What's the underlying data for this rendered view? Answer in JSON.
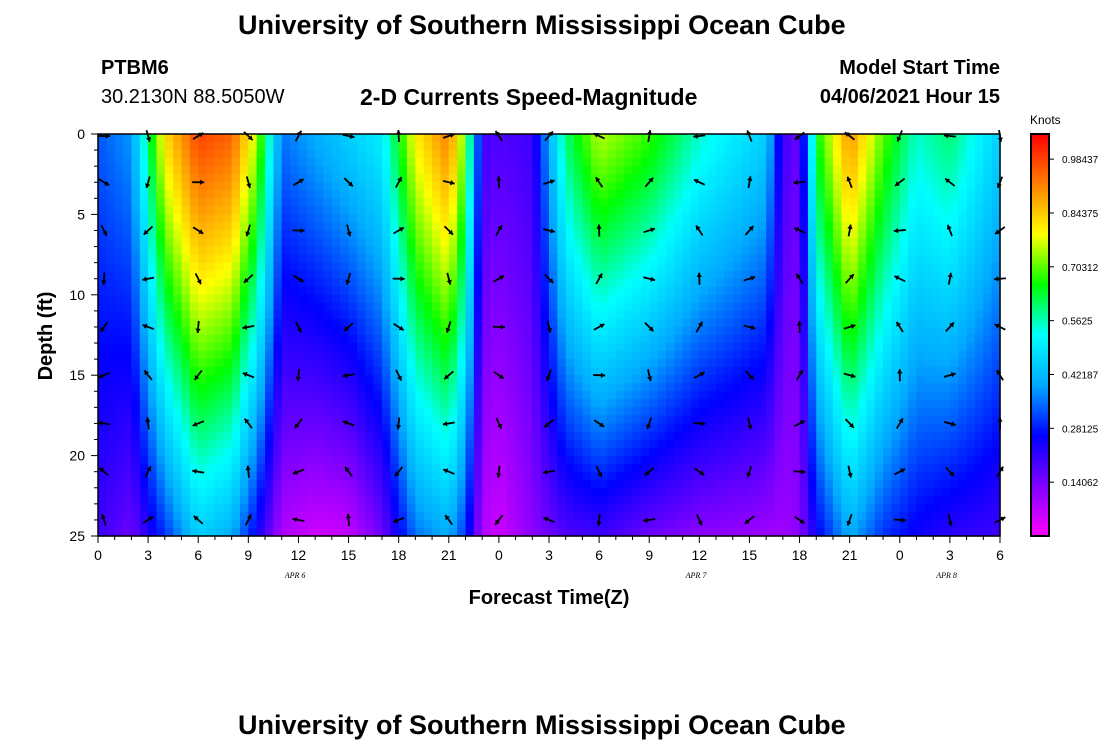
{
  "page": {
    "title": "University of Southern Mississippi Ocean Cube",
    "footer_title": "University of Southern Mississippi Ocean Cube",
    "station_id": "PTBM6",
    "station_coords": "30.2130N  88.5050W",
    "model_start_label": "Model Start Time",
    "model_start_value": "04/06/2021 Hour 15"
  },
  "chart_data": {
    "type": "heatmap",
    "title": "2-D Currents Speed-Magnitude",
    "xlabel": "Forecast Time(Z)",
    "ylabel": "Depth (ft)",
    "x_hours_range": [
      0,
      54
    ],
    "x_tick_labels": [
      "0",
      "3",
      "6",
      "9",
      "12",
      "15",
      "18",
      "21",
      "0",
      "3",
      "6",
      "9",
      "12",
      "15",
      "18",
      "21",
      "0",
      "3",
      "6"
    ],
    "date_labels": [
      {
        "text": "APR 6",
        "hour": 11.8
      },
      {
        "text": "APR 7",
        "hour": 35.8
      },
      {
        "text": "APR 8",
        "hour": 50.8
      }
    ],
    "y_range_ft": [
      0,
      25
    ],
    "y_tick_labels": [
      "0",
      "5",
      "10",
      "15",
      "20",
      "25"
    ],
    "colorbar": {
      "title": "Knots",
      "range": [
        0,
        1.05
      ],
      "tick_labels": [
        "0.98437",
        "0.84375",
        "0.70312",
        "0.5625",
        "0.42187",
        "0.28125",
        "0.14062"
      ],
      "tick_values": [
        0.98437,
        0.84375,
        0.70312,
        0.5625,
        0.42187,
        0.28125,
        0.14062
      ],
      "colors": [
        "#ff00ff",
        "#8000ff",
        "#0000ff",
        "#00aaff",
        "#00ffff",
        "#00ff00",
        "#ffff00",
        "#ff8000",
        "#ff0000"
      ]
    },
    "speed_profiles": [
      {
        "hour": 0,
        "surface": 0.33,
        "deep": 0.2
      },
      {
        "hour": 2,
        "surface": 0.38,
        "deep": 0.15
      },
      {
        "hour": 4,
        "surface": 0.82,
        "deep": 0.3
      },
      {
        "hour": 6,
        "surface": 0.98,
        "deep": 0.45
      },
      {
        "hour": 8,
        "surface": 0.95,
        "deep": 0.4
      },
      {
        "hour": 9.5,
        "surface": 0.75,
        "deep": 0.25
      },
      {
        "hour": 11,
        "surface": 0.35,
        "deep": 0.08
      },
      {
        "hour": 13,
        "surface": 0.4,
        "deep": 0.05
      },
      {
        "hour": 15,
        "surface": 0.45,
        "deep": 0.06
      },
      {
        "hour": 17,
        "surface": 0.5,
        "deep": 0.15
      },
      {
        "hour": 19,
        "surface": 0.8,
        "deep": 0.35
      },
      {
        "hour": 21,
        "surface": 0.92,
        "deep": 0.4
      },
      {
        "hour": 22,
        "surface": 0.7,
        "deep": 0.3
      },
      {
        "hour": 23,
        "surface": 0.2,
        "deep": 0.08
      },
      {
        "hour": 24,
        "surface": 0.18,
        "deep": 0.05
      },
      {
        "hour": 26,
        "surface": 0.2,
        "deep": 0.12
      },
      {
        "hour": 28,
        "surface": 0.6,
        "deep": 0.18
      },
      {
        "hour": 30,
        "surface": 0.75,
        "deep": 0.2
      },
      {
        "hour": 33,
        "surface": 0.68,
        "deep": 0.15
      },
      {
        "hour": 36,
        "surface": 0.55,
        "deep": 0.12
      },
      {
        "hour": 40,
        "surface": 0.45,
        "deep": 0.1
      },
      {
        "hour": 41,
        "surface": 0.2,
        "deep": 0.1
      },
      {
        "hour": 42,
        "surface": 0.15,
        "deep": 0.12
      },
      {
        "hour": 43,
        "surface": 0.65,
        "deep": 0.25
      },
      {
        "hour": 45,
        "surface": 0.9,
        "deep": 0.4
      },
      {
        "hour": 47,
        "surface": 0.7,
        "deep": 0.3
      },
      {
        "hour": 49,
        "surface": 0.55,
        "deep": 0.25
      },
      {
        "hour": 51,
        "surface": 0.6,
        "deep": 0.22
      },
      {
        "hour": 54,
        "surface": 0.45,
        "deep": 0.2
      }
    ],
    "vectors": {
      "hours": [
        0,
        3,
        6,
        9,
        12,
        15,
        18,
        21,
        24,
        27,
        30,
        33,
        36,
        39,
        42,
        45,
        48,
        51,
        54
      ],
      "depths_ft": [
        0,
        3,
        6,
        9,
        12,
        15,
        18,
        21,
        24
      ]
    }
  }
}
